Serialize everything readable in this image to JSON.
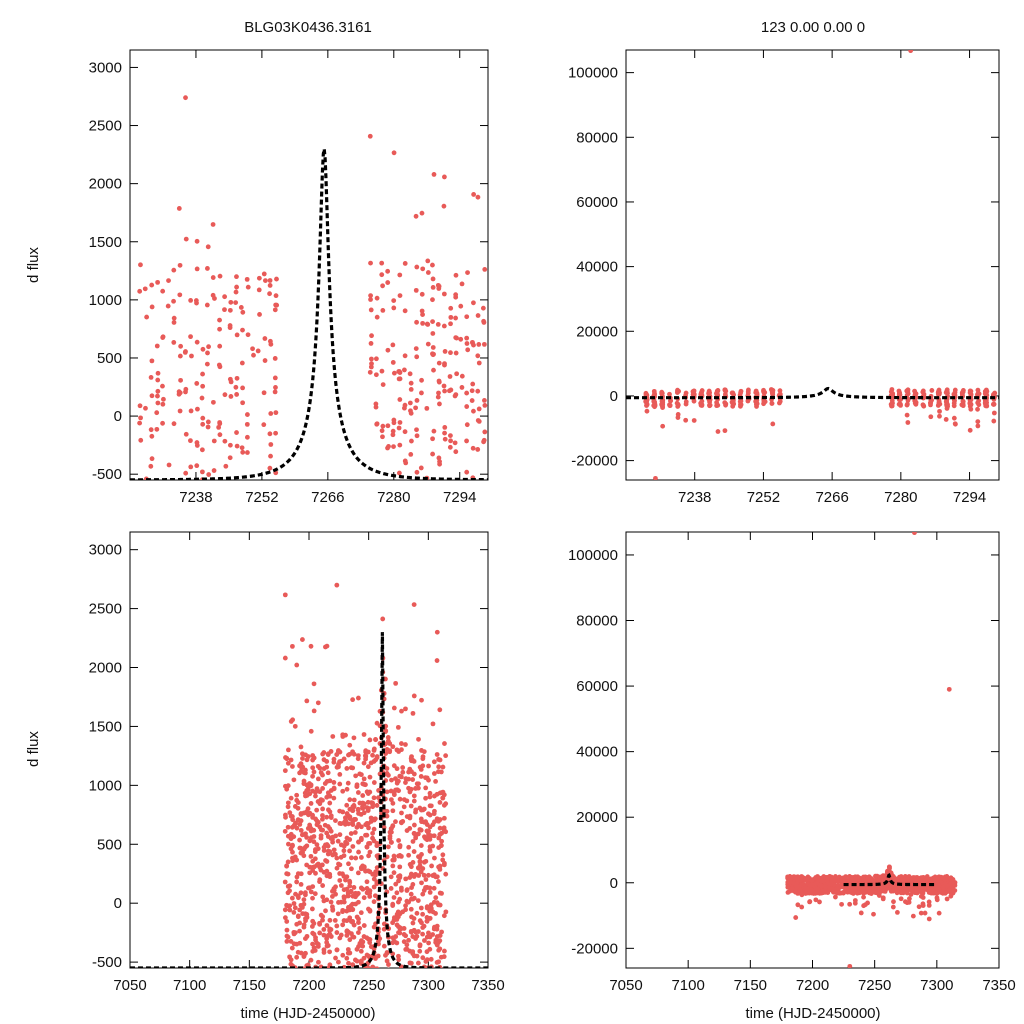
{
  "figure": {
    "title_left": "BLG03K0436.3161",
    "title_right": "123  0.00  0.00  0",
    "ylabel": "d flux",
    "xlabel": "time (HJD-2450000)"
  },
  "colors": {
    "points": "#e85a58",
    "model": "#000000",
    "frame": "#000000"
  },
  "chart_data": [
    {
      "id": "top-left",
      "type": "scatter",
      "title": "BLG03K0436.3161",
      "xlabel": "",
      "ylabel": "d flux",
      "xlim": [
        7224,
        7300
      ],
      "ylim": [
        -550,
        3150
      ],
      "xticks": [
        7238,
        7252,
        7266,
        7280,
        7294
      ],
      "yticks": [
        -500,
        0,
        500,
        1000,
        1500,
        2000,
        2500,
        3000
      ],
      "model": {
        "t0": 7265.2,
        "u0": 0.1,
        "tE": 9.4,
        "amp": 2300,
        "base": -2.45
      },
      "seasons": [
        [
          7226,
          7256
        ],
        [
          7275,
          7300
        ]
      ],
      "n_points": 460,
      "seed": 11
    },
    {
      "id": "top-right",
      "type": "scatter",
      "title": "123  0.00  0.00  0",
      "xlabel": "",
      "ylabel": "",
      "xlim": [
        7224,
        7300
      ],
      "ylim": [
        -26000,
        107000
      ],
      "xticks": [
        7238,
        7252,
        7266,
        7280,
        7294
      ],
      "yticks": [
        -20000,
        0,
        20000,
        40000,
        60000,
        80000,
        100000
      ],
      "model": {
        "t0": 7265.2,
        "u0": 0.1,
        "tE": 9.4,
        "amp": 2300,
        "base": -2.45
      },
      "seasons": [
        [
          7228,
          7256
        ],
        [
          7278,
          7300
        ]
      ],
      "n_points": 420,
      "seed": 23
    },
    {
      "id": "bottom-left",
      "type": "scatter",
      "title": "",
      "xlabel": "time (HJD-2450000)",
      "ylabel": "d flux",
      "xlim": [
        7050,
        7350
      ],
      "ylim": [
        -550,
        3150
      ],
      "xticks": [
        7050,
        7100,
        7150,
        7200,
        7250,
        7300,
        7350
      ],
      "yticks": [
        -500,
        0,
        500,
        1000,
        1500,
        2000,
        2500,
        3000
      ],
      "model": {
        "t0": 7261.5,
        "u0": 0.08,
        "tE": 9.0,
        "amp": 2300,
        "base": -2.45
      },
      "seasons": [
        [
          7180,
          7315
        ]
      ],
      "n_points": 1400,
      "seed": 37
    },
    {
      "id": "bottom-right",
      "type": "scatter",
      "title": "",
      "xlabel": "time (HJD-2450000)",
      "ylabel": "",
      "xlim": [
        7050,
        7350
      ],
      "ylim": [
        -26000,
        107000
      ],
      "xticks": [
        7050,
        7100,
        7150,
        7200,
        7250,
        7300,
        7350
      ],
      "yticks": [
        -20000,
        0,
        20000,
        40000,
        60000,
        80000,
        100000
      ],
      "model": {
        "t0": 7261.5,
        "u0": 0.08,
        "tE": 9.0,
        "amp": 2300,
        "base": -2.45
      },
      "seasons": [
        [
          7180,
          7315
        ]
      ],
      "n_points": 1000,
      "seed": 51
    }
  ]
}
